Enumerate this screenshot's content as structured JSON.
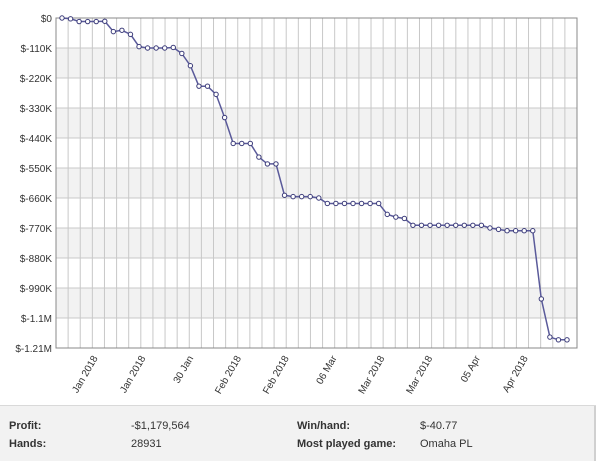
{
  "chart_data": {
    "type": "line",
    "y_tick_labels": [
      "$0",
      "$-110K",
      "$-220K",
      "$-330K",
      "$-440K",
      "$-550K",
      "$-660K",
      "$-770K",
      "$-880K",
      "$-990K",
      "$-1.1M",
      "$-1.21M"
    ],
    "y_tick_values": [
      0,
      -110000,
      -220000,
      -330000,
      -440000,
      -550000,
      -660000,
      -770000,
      -880000,
      -990000,
      -1100000,
      -1210000
    ],
    "ylim": [
      -1210000,
      0
    ],
    "x_tick_labels": [
      "Jan 2018",
      "Jan 2018",
      "30 Jan",
      "Feb 2018",
      "Feb 2018",
      "06 Mar",
      "Mar 2018",
      "Mar 2018",
      "05 Apr",
      "Apr 2018"
    ],
    "x_count": 60,
    "grid": true,
    "line_color": "#5a5a9a",
    "band_color": "#f2f2f2",
    "series": [
      {
        "x": [
          0,
          1,
          2,
          3,
          4,
          5,
          6,
          7,
          8,
          9,
          10,
          11,
          12,
          13,
          14,
          15,
          16,
          17,
          18,
          19,
          20,
          21,
          22,
          23,
          24,
          25,
          26,
          27,
          28,
          29,
          30,
          31,
          32,
          33,
          34,
          35,
          36,
          37,
          38,
          39,
          40,
          41,
          42,
          43,
          44,
          45,
          46,
          47,
          48,
          49,
          50,
          51,
          52,
          53,
          54,
          55,
          56,
          57,
          58,
          59
        ],
        "values": [
          0,
          -3000,
          -13000,
          -13000,
          -13000,
          -12000,
          -50000,
          -45000,
          -60000,
          -105000,
          -110000,
          -110000,
          -110000,
          -108000,
          -130000,
          -175000,
          -250000,
          -250000,
          -280000,
          -365000,
          -460000,
          -460000,
          -460000,
          -510000,
          -535000,
          -535000,
          -650000,
          -655000,
          -655000,
          -655000,
          -660000,
          -680000,
          -680000,
          -680000,
          -680000,
          -680000,
          -680000,
          -680000,
          -720000,
          -730000,
          -735000,
          -760000,
          -760000,
          -760000,
          -760000,
          -760000,
          -760000,
          -760000,
          -760000,
          -760000,
          -770000,
          -775000,
          -780000,
          -780000,
          -780000,
          -780000,
          -1030000,
          -1170000,
          -1180000,
          -1180000
        ]
      }
    ]
  },
  "stats": {
    "profit_label": "Profit:",
    "profit_value": "-$1,179,564",
    "hands_label": "Hands:",
    "hands_value": "28931",
    "winhand_label": "Win/hand:",
    "winhand_value": "$-40.77",
    "game_label": "Most played game:",
    "game_value": "Omaha PL"
  }
}
